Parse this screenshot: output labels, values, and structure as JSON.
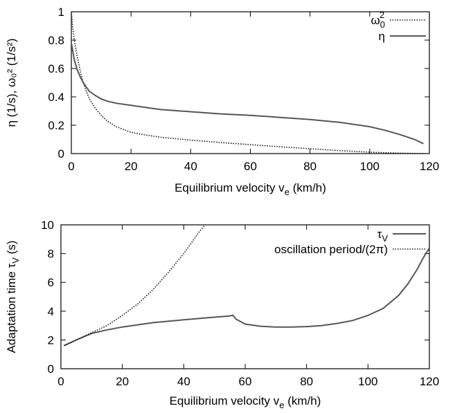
{
  "chart_data": [
    {
      "type": "line",
      "xlabel": {
        "main": "Equilibrium velocity v",
        "sub": "e",
        "rest": " (km/h)"
      },
      "ylabel": "η (1/s), ω₀² (1/s²)",
      "xlim": [
        0,
        120
      ],
      "ylim": [
        0,
        1
      ],
      "xticks": [
        0,
        20,
        40,
        60,
        80,
        100,
        120
      ],
      "yticks": [
        0,
        0.2,
        0.4,
        0.6,
        0.8,
        1
      ],
      "ytick_labels": [
        "0",
        "0.2",
        "0.4",
        "0.6",
        "0.8",
        "1"
      ],
      "grid": false,
      "legend_position": "top-right",
      "series": [
        {
          "name": {
            "main": "ω",
            "sub": "0",
            "sup": "2"
          },
          "style": "dotted",
          "color": "#111111",
          "x": [
            0,
            0.5,
            1,
            2,
            3,
            4,
            5,
            6,
            8,
            10,
            12,
            15,
            20,
            25,
            30,
            40,
            50,
            60,
            70,
            80,
            90,
            100,
            110,
            115,
            118
          ],
          "y": [
            1.0,
            0.88,
            0.8,
            0.68,
            0.58,
            0.5,
            0.44,
            0.39,
            0.32,
            0.27,
            0.23,
            0.19,
            0.15,
            0.13,
            0.115,
            0.095,
            0.078,
            0.063,
            0.048,
            0.034,
            0.021,
            0.01,
            0.003,
            0.001,
            0.0
          ]
        },
        {
          "name": {
            "main": "η"
          },
          "style": "solid",
          "color": "#555555",
          "x": [
            0,
            0.5,
            1,
            2,
            3,
            4,
            5,
            6,
            8,
            10,
            12,
            15,
            20,
            25,
            30,
            40,
            50,
            60,
            70,
            80,
            90,
            100,
            105,
            110,
            115,
            118
          ],
          "y": [
            0.78,
            0.72,
            0.66,
            0.59,
            0.54,
            0.5,
            0.47,
            0.44,
            0.41,
            0.385,
            0.37,
            0.355,
            0.34,
            0.325,
            0.31,
            0.295,
            0.28,
            0.27,
            0.255,
            0.24,
            0.22,
            0.19,
            0.165,
            0.135,
            0.1,
            0.07
          ]
        }
      ]
    },
    {
      "type": "line",
      "xlabel": {
        "main": "Equilibrium velocity v",
        "sub": "e",
        "rest": " (km/h)"
      },
      "ylabel": {
        "main": "Adaptation time τ",
        "sub": "V",
        "rest": " (s)"
      },
      "xlim": [
        0,
        120
      ],
      "ylim": [
        0,
        10
      ],
      "xticks": [
        0,
        20,
        40,
        60,
        80,
        100,
        120
      ],
      "yticks": [
        0,
        2,
        4,
        6,
        8,
        10
      ],
      "ytick_labels": [
        "0",
        "2",
        "4",
        "6",
        "8",
        "10"
      ],
      "grid": false,
      "legend_position": "top-right",
      "series": [
        {
          "name": {
            "main": "τ",
            "sub": "V"
          },
          "style": "solid",
          "color": "#555555",
          "x": [
            1,
            5,
            10,
            15,
            20,
            30,
            40,
            50,
            55,
            56,
            57,
            60,
            65,
            70,
            75,
            80,
            85,
            90,
            95,
            100,
            105,
            110,
            113,
            116,
            118,
            120
          ],
          "y": [
            1.6,
            2.0,
            2.45,
            2.7,
            2.9,
            3.2,
            3.4,
            3.58,
            3.67,
            3.72,
            3.45,
            3.1,
            2.95,
            2.9,
            2.9,
            2.93,
            3.0,
            3.15,
            3.35,
            3.7,
            4.2,
            5.1,
            5.9,
            6.9,
            7.7,
            8.4
          ]
        },
        {
          "name": {
            "main": "oscillation period/(2π)"
          },
          "style": "dotted",
          "color": "#111111",
          "x": [
            1,
            5,
            10,
            15,
            20,
            25,
            30,
            35,
            40,
            43,
            45,
            47
          ],
          "y": [
            1.6,
            2.0,
            2.5,
            3.0,
            3.7,
            4.5,
            5.5,
            6.7,
            8.0,
            8.9,
            9.5,
            10.0
          ]
        }
      ]
    }
  ]
}
